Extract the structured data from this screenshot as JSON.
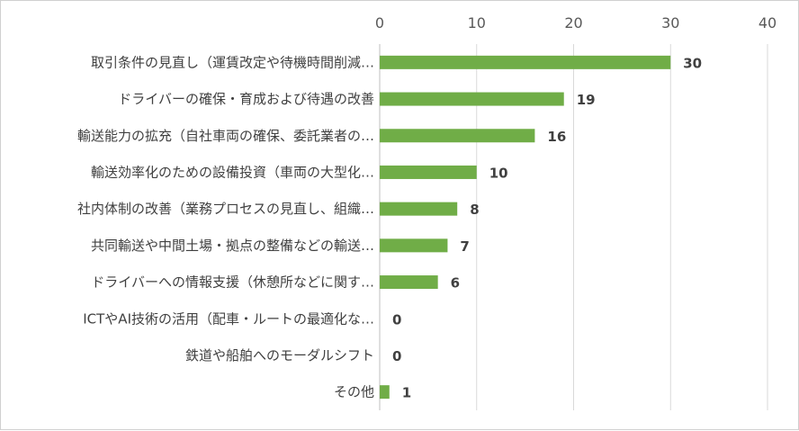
{
  "chart_data": {
    "type": "bar",
    "orientation": "horizontal",
    "categories": [
      "取引条件の見直し（運賃改定や待機時間削減…",
      "ドライバーの確保・育成および待遇の改善",
      "輸送能力の拡充（自社車両の確保、委託業者の…",
      "輸送効率化のための設備投資（車両の大型化…",
      "社内体制の改善（業務プロセスの見直し、組織…",
      "共同輸送や中間土場・拠点の整備などの輸送…",
      "ドライバーへの情報支援（休憩所などに関す…",
      "ICTやAI技術の活用（配車・ルートの最適化な…",
      "鉄道や船舶へのモーダルシフト",
      "その他"
    ],
    "values": [
      30,
      19,
      16,
      10,
      8,
      7,
      6,
      0,
      0,
      1
    ],
    "xlim": [
      0,
      40
    ],
    "xticks": [
      0,
      10,
      20,
      30,
      40
    ],
    "xtick_labels": [
      "0",
      "10",
      "20",
      "30",
      "40"
    ],
    "x_axis_position": "top",
    "grid": true,
    "bar_color": "#70AD47",
    "gridline_color": "#D9D9D9",
    "title": "",
    "xlabel": "",
    "ylabel": ""
  }
}
